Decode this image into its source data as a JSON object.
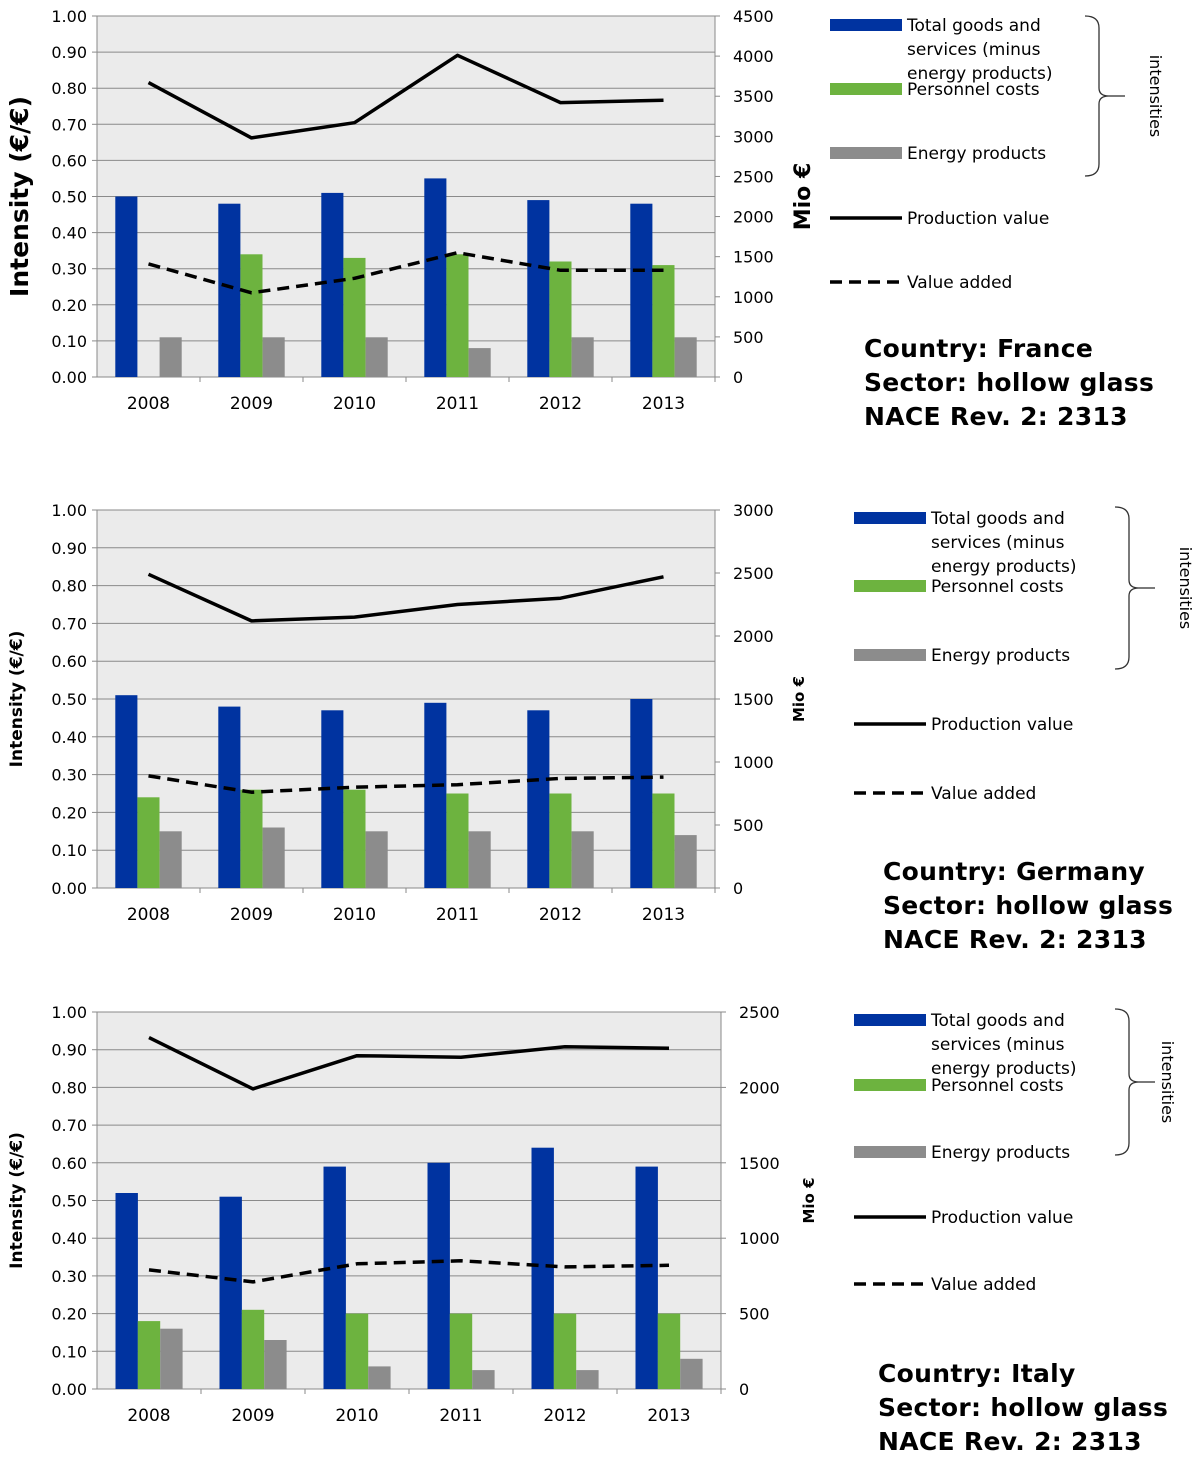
{
  "legend": {
    "total_goods": "Total goods and services (minus energy products)",
    "total_goods_lines": [
      "Total goods and",
      "services (minus",
      "energy products)"
    ],
    "personnel": "Personnel costs",
    "energy": "Energy products",
    "production": "Production value",
    "value_added": "Value added",
    "bracket_label": "intensities"
  },
  "colors": {
    "total_goods": "#0033A0",
    "personnel": "#6DB33F",
    "energy": "#8C8C8C",
    "plot_bg": "#EBEBEB",
    "line": "#000000"
  },
  "chart_data": [
    {
      "type": "bar",
      "categories": [
        "2008",
        "2009",
        "2010",
        "2011",
        "2012",
        "2013"
      ],
      "ylabel": "Intensity (€/€)",
      "y2label": "Mio €",
      "ylim": [
        0,
        1.0
      ],
      "y2lim": [
        0,
        4500
      ],
      "yticks": [
        "0.00",
        "0.10",
        "0.20",
        "0.30",
        "0.40",
        "0.50",
        "0.60",
        "0.70",
        "0.80",
        "0.90",
        "1.00"
      ],
      "y2ticks": [
        "0",
        "500",
        "1000",
        "1500",
        "2000",
        "2500",
        "3000",
        "3500",
        "4000",
        "4500"
      ],
      "grid": true,
      "legend_position": "right",
      "series": [
        {
          "name": "Total goods and services (minus energy products)",
          "axis": "left",
          "kind": "bar",
          "values": [
            0.5,
            0.48,
            0.51,
            0.55,
            0.49,
            0.48
          ]
        },
        {
          "name": "Personnel costs",
          "axis": "left",
          "kind": "bar",
          "values": [
            null,
            0.34,
            0.33,
            0.34,
            0.32,
            0.31
          ]
        },
        {
          "name": "Energy products",
          "axis": "left",
          "kind": "bar",
          "values": [
            0.11,
            0.11,
            0.11,
            0.08,
            0.11,
            0.11
          ]
        },
        {
          "name": "Production value",
          "axis": "right",
          "kind": "line",
          "values": [
            3670,
            2980,
            3170,
            4010,
            3420,
            3450
          ]
        },
        {
          "name": "Value added",
          "axis": "right",
          "kind": "dashed",
          "values": [
            1410,
            1050,
            1230,
            1550,
            1330,
            1330
          ]
        }
      ],
      "info": [
        "Country: France",
        "Sector: hollow glass",
        "NACE Rev. 2: 2313"
      ]
    },
    {
      "type": "bar",
      "categories": [
        "2008",
        "2009",
        "2010",
        "2011",
        "2012",
        "2013"
      ],
      "ylabel": "Intensity (€/€)",
      "y2label": "Mio €",
      "ylim": [
        0,
        1.0
      ],
      "y2lim": [
        0,
        3000
      ],
      "yticks": [
        "0.00",
        "0.10",
        "0.20",
        "0.30",
        "0.40",
        "0.50",
        "0.60",
        "0.70",
        "0.80",
        "0.90",
        "1.00"
      ],
      "y2ticks": [
        "0",
        "500",
        "1000",
        "1500",
        "2000",
        "2500",
        "3000"
      ],
      "grid": true,
      "legend_position": "right",
      "series": [
        {
          "name": "Total goods and services (minus energy products)",
          "axis": "left",
          "kind": "bar",
          "values": [
            0.51,
            0.48,
            0.47,
            0.49,
            0.47,
            0.5
          ]
        },
        {
          "name": "Personnel costs",
          "axis": "left",
          "kind": "bar",
          "values": [
            0.24,
            0.26,
            0.26,
            0.25,
            0.25,
            0.25
          ]
        },
        {
          "name": "Energy products",
          "axis": "left",
          "kind": "bar",
          "values": [
            0.15,
            0.16,
            0.15,
            0.15,
            0.15,
            0.14
          ]
        },
        {
          "name": "Production value",
          "axis": "right",
          "kind": "line",
          "values": [
            2490,
            2120,
            2150,
            2250,
            2300,
            2470
          ]
        },
        {
          "name": "Value added",
          "axis": "right",
          "kind": "dashed",
          "values": [
            890,
            760,
            800,
            820,
            870,
            880
          ]
        }
      ],
      "info": [
        "Country: Germany",
        "Sector: hollow glass",
        "NACE Rev. 2: 2313"
      ]
    },
    {
      "type": "bar",
      "categories": [
        "2008",
        "2009",
        "2010",
        "2011",
        "2012",
        "2013"
      ],
      "ylabel": "Intensity (€/€)",
      "y2label": "Mio €",
      "ylim": [
        0,
        1.0
      ],
      "y2lim": [
        0,
        2500
      ],
      "yticks": [
        "0.00",
        "0.10",
        "0.20",
        "0.30",
        "0.40",
        "0.50",
        "0.60",
        "0.70",
        "0.80",
        "0.90",
        "1.00"
      ],
      "y2ticks": [
        "0",
        "500",
        "1000",
        "1500",
        "2000",
        "2500"
      ],
      "grid": true,
      "legend_position": "right",
      "series": [
        {
          "name": "Total goods and services (minus energy products)",
          "axis": "left",
          "kind": "bar",
          "values": [
            0.52,
            0.51,
            0.59,
            0.6,
            0.64,
            0.59
          ]
        },
        {
          "name": "Personnel costs",
          "axis": "left",
          "kind": "bar",
          "values": [
            0.18,
            0.21,
            0.2,
            0.2,
            0.2,
            0.2
          ]
        },
        {
          "name": "Energy products",
          "axis": "left",
          "kind": "bar",
          "values": [
            0.16,
            0.13,
            0.06,
            0.05,
            0.05,
            0.08
          ]
        },
        {
          "name": "Production value",
          "axis": "right",
          "kind": "line",
          "values": [
            2330,
            1990,
            2210,
            2200,
            2270,
            2260
          ]
        },
        {
          "name": "Value added",
          "axis": "right",
          "kind": "dashed",
          "values": [
            790,
            710,
            830,
            850,
            810,
            820
          ]
        }
      ],
      "info": [
        "Country: Italy",
        "Sector: hollow glass",
        "NACE Rev. 2: 2313"
      ]
    }
  ]
}
